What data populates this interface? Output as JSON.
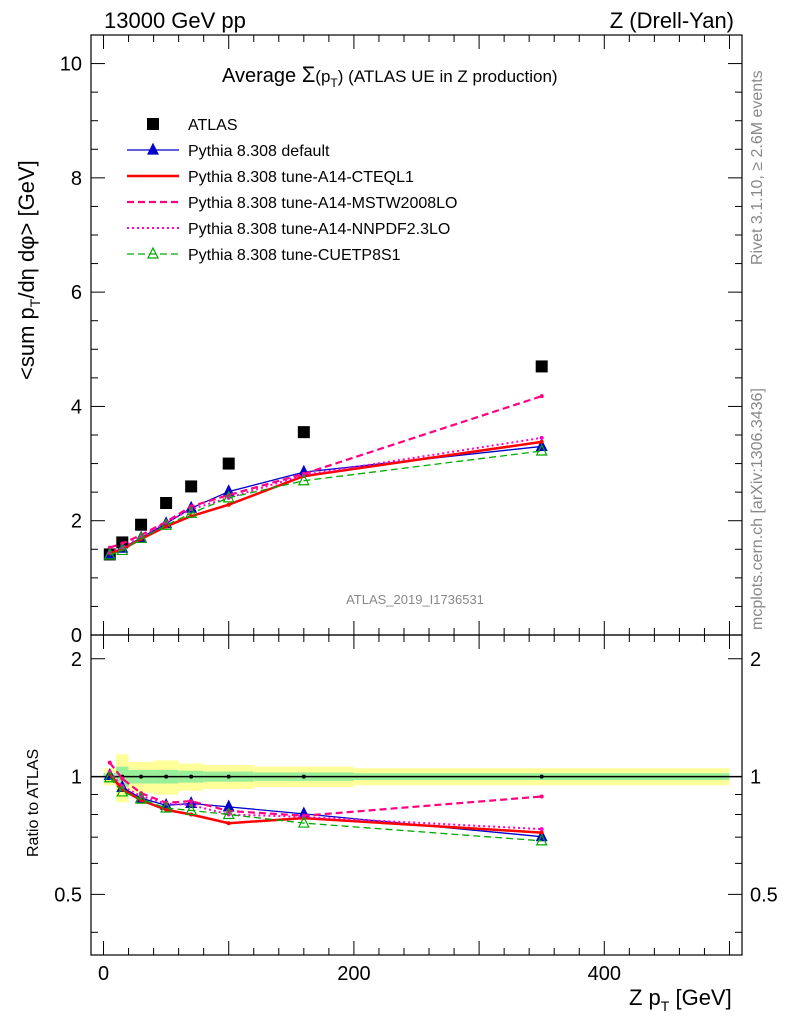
{
  "header": {
    "left": "13000 GeV pp",
    "right": "Z (Drell-Yan)"
  },
  "side_texts": {
    "rivet": "Rivet 3.1.10, ≥ 2.6M events",
    "mcplots": "mcplots.cern.ch [arXiv:1306.3436]"
  },
  "chart_data": {
    "type": "line",
    "title_prefix": "Average ",
    "title_sigma": "Σ",
    "title_paren_open": "(p",
    "title_sub": "T",
    "title_paren_close": ")",
    "title_suffix": " (ATLAS UE in Z production)",
    "ylabel_main": "<sum p",
    "ylabel_sub": "T",
    "ylabel_rest": "/dη dφ> [GeV]",
    "ylabel_ratio": "Ratio to ATLAS",
    "xlabel_main": "Z p",
    "xlabel_sub": "T",
    "xlabel_rest": " [GeV]",
    "watermark": "ATLAS_2019_I1736531",
    "xlim": [
      -10,
      510
    ],
    "ylim": [
      0,
      10.5
    ],
    "ratio_ylim": [
      0.35,
      2.3
    ],
    "ratio_log": true,
    "x_ticks": [
      "0",
      "200",
      "400"
    ],
    "y_ticks": [
      "0",
      "2",
      "4",
      "6",
      "8",
      "10"
    ],
    "ratio_ticks": [
      "0.5",
      "1",
      "2"
    ],
    "legend_placement": "top-left",
    "x": [
      5,
      15,
      30,
      50,
      70,
      100,
      160,
      350
    ],
    "series": [
      {
        "name": "ATLAS",
        "color": "#000000",
        "marker": "square",
        "dash": "none",
        "values": [
          1.41,
          1.62,
          1.93,
          2.31,
          2.6,
          3.0,
          3.55,
          4.7
        ]
      },
      {
        "name": "Pythia 8.308 default",
        "color": "#0000cc",
        "marker": "triangle",
        "dash": "solid",
        "values": [
          1.42,
          1.52,
          1.7,
          1.95,
          2.22,
          2.51,
          2.85,
          3.3
        ]
      },
      {
        "name": "Pythia 8.308 tune-A14-CTEQL1",
        "color": "#ff0000",
        "marker": "none",
        "dash": "solid",
        "width": 2.5,
        "values": [
          1.43,
          1.5,
          1.68,
          1.9,
          2.08,
          2.28,
          2.78,
          3.38
        ]
      },
      {
        "name": "Pythia 8.308 tune-A14-MSTW2008LO",
        "color": "#ff0080",
        "marker": "none",
        "dash": "dashed",
        "width": 2.2,
        "values": [
          1.53,
          1.6,
          1.75,
          1.98,
          2.25,
          2.45,
          2.82,
          4.18
        ]
      },
      {
        "name": "Pythia 8.308 tune-A14-NNPDF2.3LO",
        "color": "#ff00cc",
        "marker": "none",
        "dash": "dotted",
        "width": 2,
        "values": [
          1.45,
          1.53,
          1.72,
          1.97,
          2.2,
          2.4,
          2.8,
          3.45
        ]
      },
      {
        "name": "Pythia 8.308 tune-CUETP8S1",
        "color": "#00aa00",
        "marker": "open-triangle",
        "dash": "dashed",
        "values": [
          1.4,
          1.48,
          1.69,
          1.92,
          2.13,
          2.4,
          2.7,
          3.22
        ]
      }
    ],
    "ratio_band": {
      "x_edges": [
        0,
        10,
        20,
        40,
        60,
        80,
        120,
        200,
        500
      ],
      "inner": [
        0.02,
        0.06,
        0.04,
        0.04,
        0.035,
        0.03,
        0.025,
        0.02
      ],
      "outer": [
        0.05,
        0.14,
        0.09,
        0.1,
        0.08,
        0.07,
        0.06,
        0.05
      ]
    }
  }
}
